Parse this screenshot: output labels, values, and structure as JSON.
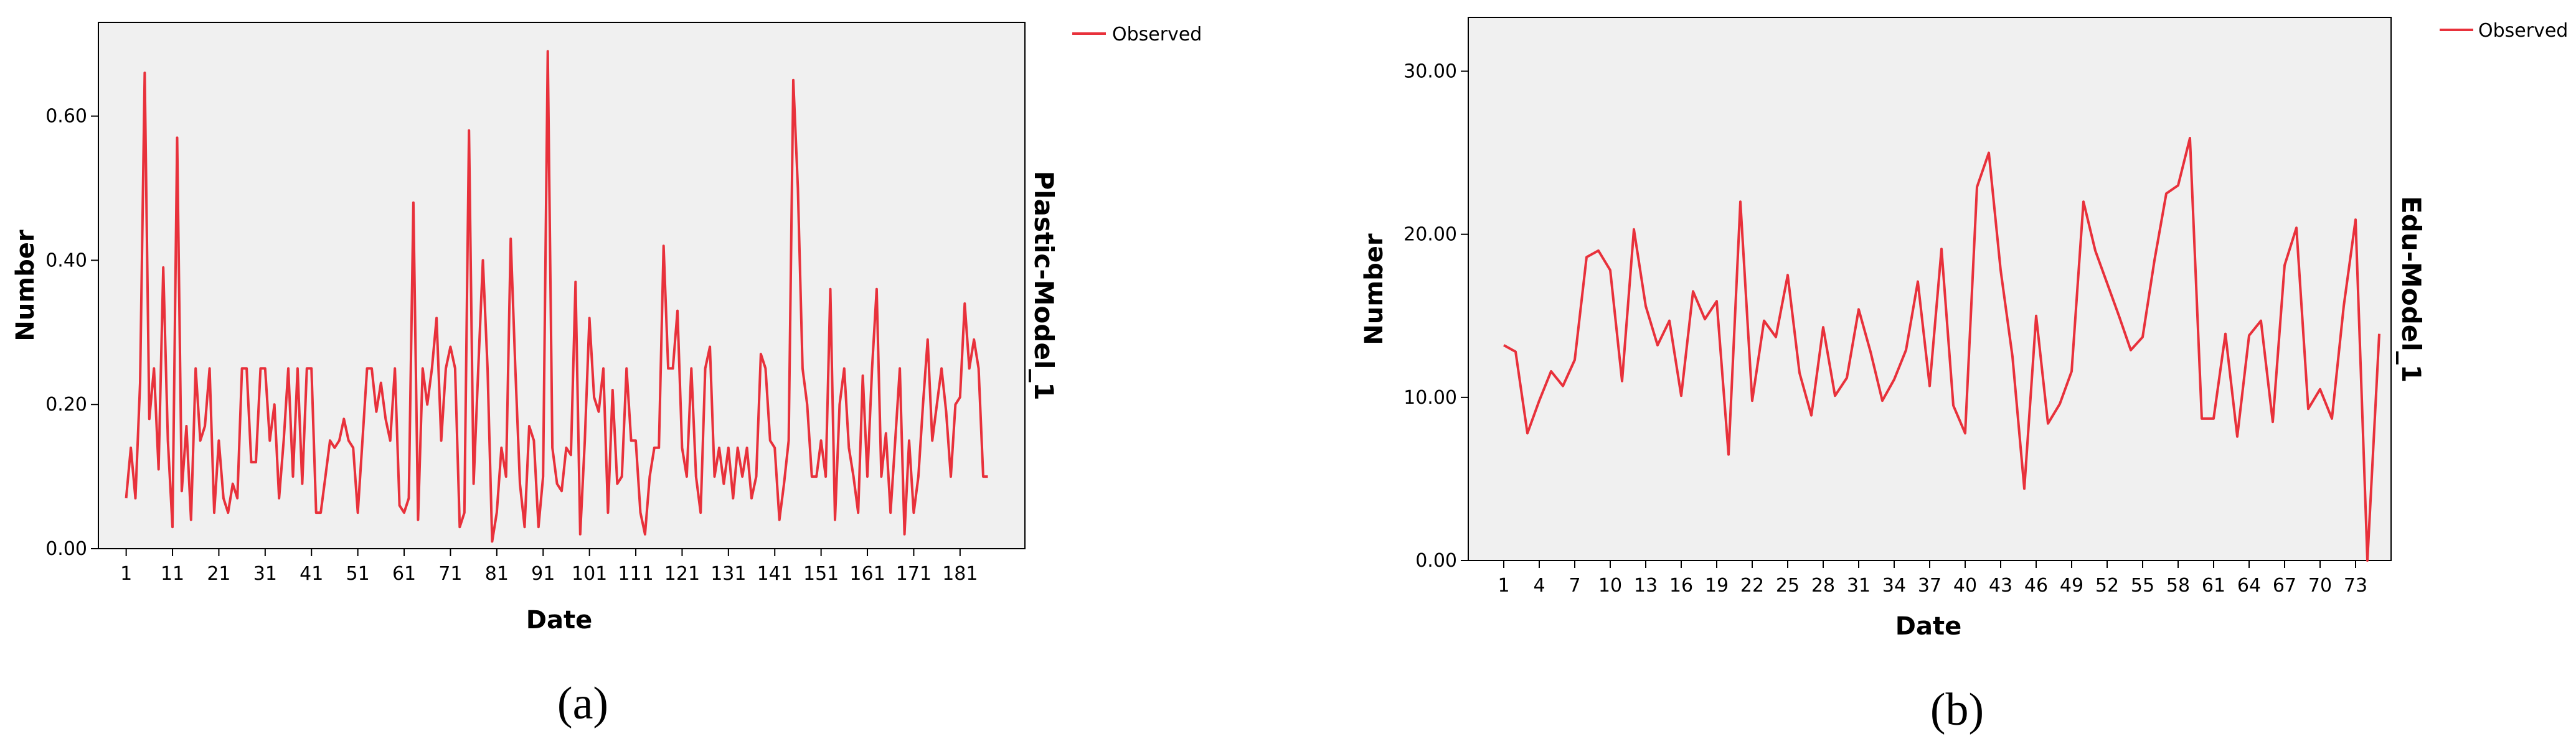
{
  "colors": {
    "line": "#e8313b",
    "plot_bg": "#f0f0f0",
    "frame": "#000000"
  },
  "chart_data": [
    {
      "type": "line",
      "caption": "(a)",
      "xlabel": "Date",
      "ylabel": "Number",
      "model_label": "Plastic-Model_1",
      "legend": [
        "Observed"
      ],
      "legend_placement": "top-right outside",
      "grid": false,
      "ylim": [
        0,
        0.73
      ],
      "xlim": [
        -5,
        195
      ],
      "yticks": [
        0,
        0.2,
        0.4,
        0.6
      ],
      "ytick_labels": [
        "0.00",
        "0.20",
        "0.40",
        "0.60"
      ],
      "xticks": [
        1,
        11,
        21,
        31,
        41,
        51,
        61,
        71,
        81,
        91,
        101,
        111,
        121,
        131,
        141,
        151,
        161,
        171,
        181
      ],
      "xtick_labels": [
        "1",
        "11",
        "21",
        "31",
        "41",
        "51",
        "61",
        "71",
        "81",
        "91",
        "101",
        "111",
        "121",
        "131",
        "141",
        "151",
        "161",
        "171",
        "181"
      ],
      "series": [
        {
          "name": "Observed",
          "x_start": 1,
          "values": [
            0.07,
            0.14,
            0.07,
            0.23,
            0.66,
            0.18,
            0.25,
            0.11,
            0.39,
            0.15,
            0.03,
            0.57,
            0.08,
            0.17,
            0.04,
            0.25,
            0.15,
            0.17,
            0.25,
            0.05,
            0.15,
            0.07,
            0.05,
            0.09,
            0.07,
            0.25,
            0.25,
            0.12,
            0.12,
            0.25,
            0.25,
            0.15,
            0.2,
            0.07,
            0.15,
            0.25,
            0.1,
            0.25,
            0.09,
            0.25,
            0.25,
            0.05,
            0.05,
            0.1,
            0.15,
            0.14,
            0.15,
            0.18,
            0.15,
            0.14,
            0.05,
            0.15,
            0.25,
            0.25,
            0.19,
            0.23,
            0.18,
            0.15,
            0.25,
            0.06,
            0.05,
            0.07,
            0.48,
            0.04,
            0.25,
            0.2,
            0.25,
            0.32,
            0.15,
            0.25,
            0.28,
            0.25,
            0.03,
            0.05,
            0.58,
            0.09,
            0.25,
            0.4,
            0.25,
            0.01,
            0.05,
            0.14,
            0.1,
            0.43,
            0.25,
            0.09,
            0.03,
            0.17,
            0.15,
            0.03,
            0.1,
            0.69,
            0.14,
            0.09,
            0.08,
            0.14,
            0.13,
            0.37,
            0.02,
            0.15,
            0.32,
            0.21,
            0.19,
            0.25,
            0.05,
            0.22,
            0.09,
            0.1,
            0.25,
            0.15,
            0.15,
            0.05,
            0.02,
            0.1,
            0.14,
            0.14,
            0.42,
            0.25,
            0.25,
            0.33,
            0.14,
            0.1,
            0.25,
            0.1,
            0.05,
            0.25,
            0.28,
            0.1,
            0.14,
            0.09,
            0.14,
            0.07,
            0.14,
            0.1,
            0.14,
            0.07,
            0.1,
            0.27,
            0.25,
            0.15,
            0.14,
            0.04,
            0.09,
            0.15,
            0.65,
            0.5,
            0.25,
            0.2,
            0.1,
            0.1,
            0.15,
            0.1,
            0.36,
            0.04,
            0.2,
            0.25,
            0.14,
            0.1,
            0.05,
            0.24,
            0.1,
            0.25,
            0.36,
            0.1,
            0.16,
            0.05,
            0.15,
            0.25,
            0.02,
            0.15,
            0.05,
            0.1,
            0.2,
            0.29,
            0.15,
            0.2,
            0.25,
            0.19,
            0.1,
            0.2,
            0.21,
            0.34,
            0.25,
            0.29,
            0.25,
            0.1,
            0.1
          ]
        }
      ]
    },
    {
      "type": "line",
      "caption": "(b)",
      "xlabel": "Date",
      "ylabel": "Number",
      "model_label": "Edu-Model_1",
      "legend": [
        "Observed"
      ],
      "legend_placement": "top-right outside",
      "grid": false,
      "ylim": [
        0,
        33.3
      ],
      "xlim": [
        -2,
        76
      ],
      "yticks": [
        0,
        10,
        20,
        30
      ],
      "ytick_labels": [
        "0.00",
        "10.00",
        "20.00",
        "30.00"
      ],
      "xticks": [
        1,
        4,
        7,
        10,
        13,
        16,
        19,
        22,
        25,
        28,
        31,
        34,
        37,
        40,
        43,
        46,
        49,
        52,
        55,
        58,
        61,
        64,
        67,
        70,
        73
      ],
      "xtick_labels": [
        "1",
        "4",
        "7",
        "10",
        "13",
        "16",
        "19",
        "22",
        "25",
        "28",
        "31",
        "34",
        "37",
        "40",
        "43",
        "46",
        "49",
        "52",
        "55",
        "58",
        "61",
        "64",
        "67",
        "70",
        "73"
      ],
      "series": [
        {
          "name": "Observed",
          "x_start": 1,
          "values": [
            13.2,
            12.8,
            7.8,
            9.8,
            11.6,
            10.7,
            12.3,
            18.6,
            19.0,
            17.8,
            11.0,
            20.3,
            15.6,
            13.2,
            14.7,
            10.1,
            16.5,
            14.8,
            15.9,
            6.5,
            22.0,
            9.8,
            14.7,
            13.7,
            17.5,
            11.5,
            8.9,
            14.3,
            10.1,
            11.2,
            15.4,
            12.8,
            9.8,
            11.1,
            12.9,
            17.1,
            10.7,
            19.1,
            9.5,
            7.8,
            22.9,
            25.0,
            17.8,
            12.5,
            4.4,
            15.0,
            8.4,
            9.6,
            11.6,
            22.0,
            19.0,
            17.0,
            15.0,
            12.9,
            13.7,
            18.4,
            22.5,
            23.0,
            25.9,
            8.7,
            8.7,
            13.9,
            7.6,
            13.8,
            14.7,
            8.5,
            18.1,
            20.4,
            9.3,
            10.5,
            8.7,
            15.6,
            20.9,
            0.0,
            13.9
          ]
        }
      ]
    }
  ]
}
